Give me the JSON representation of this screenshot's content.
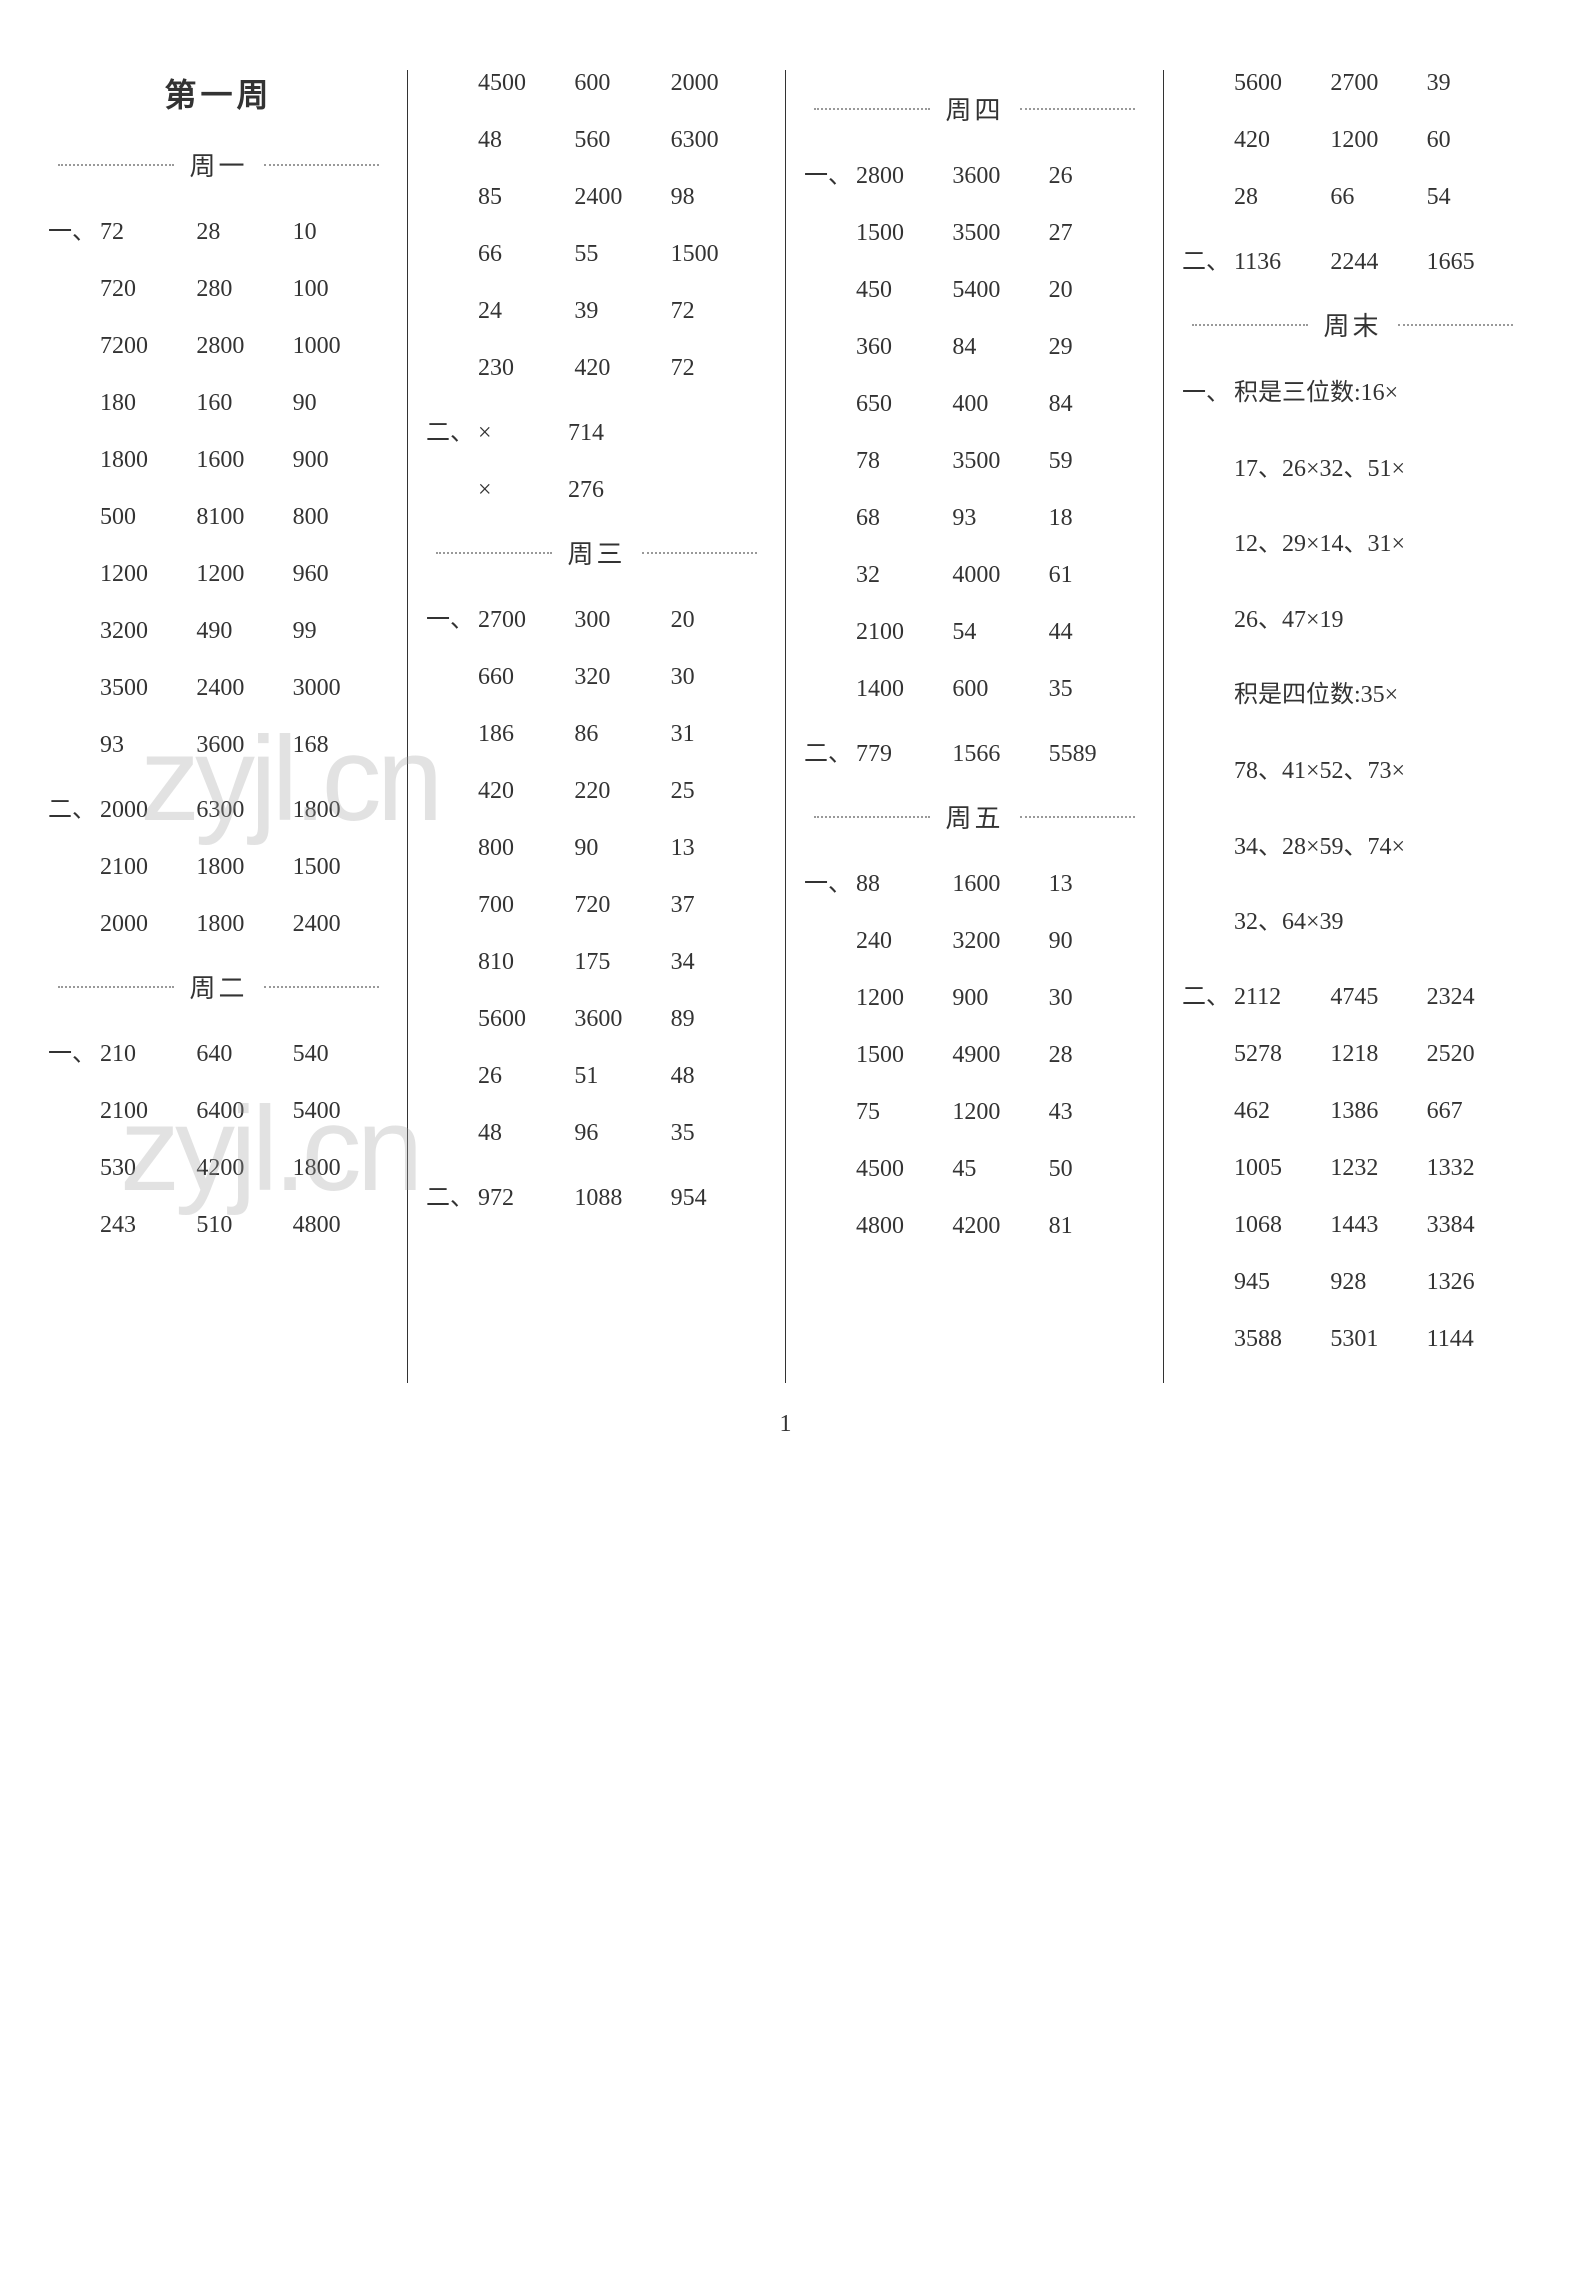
{
  "page_number": "1",
  "week_title": "第一周",
  "watermark_text": "zyjl.cn",
  "colors": {
    "text": "#333333",
    "background": "#ffffff",
    "divider": "#333333",
    "dots": "#999999",
    "watermark": "rgba(160,160,160,0.3)"
  },
  "typography": {
    "body_fontsize": 24,
    "title_fontsize": 32,
    "day_fontsize": 26,
    "font_family": "SimSun"
  },
  "columns": [
    {
      "blocks": [
        {
          "type": "week_title"
        },
        {
          "type": "day_header",
          "label": "周一"
        },
        {
          "type": "row",
          "marker": "一、",
          "values": [
            "72",
            "28",
            "10"
          ]
        },
        {
          "type": "row",
          "marker": "",
          "values": [
            "720",
            "280",
            "100"
          ]
        },
        {
          "type": "row",
          "marker": "",
          "values": [
            "7200",
            "2800",
            "1000"
          ]
        },
        {
          "type": "row",
          "marker": "",
          "values": [
            "180",
            "160",
            "90"
          ]
        },
        {
          "type": "row",
          "marker": "",
          "values": [
            "1800",
            "1600",
            "900"
          ]
        },
        {
          "type": "row",
          "marker": "",
          "values": [
            "500",
            "8100",
            "800"
          ]
        },
        {
          "type": "row",
          "marker": "",
          "values": [
            "1200",
            "1200",
            "960"
          ]
        },
        {
          "type": "row",
          "marker": "",
          "values": [
            "3200",
            "490",
            "99"
          ]
        },
        {
          "type": "row",
          "marker": "",
          "values": [
            "3500",
            "2400",
            "3000"
          ]
        },
        {
          "type": "row",
          "marker": "",
          "values": [
            "93",
            "3600",
            "168"
          ]
        },
        {
          "type": "row",
          "marker": "二、",
          "values": [
            "2000",
            "6300",
            "1800"
          ]
        },
        {
          "type": "row",
          "marker": "",
          "values": [
            "2100",
            "1800",
            "1500"
          ]
        },
        {
          "type": "row",
          "marker": "",
          "values": [
            "2000",
            "1800",
            "2400"
          ]
        },
        {
          "type": "day_header",
          "label": "周二"
        },
        {
          "type": "row",
          "marker": "一、",
          "values": [
            "210",
            "640",
            "540"
          ]
        },
        {
          "type": "row",
          "marker": "",
          "values": [
            "2100",
            "6400",
            "5400"
          ]
        },
        {
          "type": "row",
          "marker": "",
          "values": [
            "530",
            "4200",
            "1800"
          ]
        },
        {
          "type": "row",
          "marker": "",
          "values": [
            "243",
            "510",
            "4800"
          ]
        }
      ]
    },
    {
      "blocks": [
        {
          "type": "row",
          "marker": "",
          "values": [
            "4500",
            "600",
            "2000"
          ]
        },
        {
          "type": "row",
          "marker": "",
          "values": [
            "48",
            "560",
            "6300"
          ]
        },
        {
          "type": "row",
          "marker": "",
          "values": [
            "85",
            "2400",
            "98"
          ]
        },
        {
          "type": "row",
          "marker": "",
          "values": [
            "66",
            "55",
            "1500"
          ]
        },
        {
          "type": "row",
          "marker": "",
          "values": [
            "24",
            "39",
            "72"
          ]
        },
        {
          "type": "row",
          "marker": "",
          "values": [
            "230",
            "420",
            "72"
          ]
        },
        {
          "type": "symbol",
          "marker": "二、",
          "sym": "×",
          "val": "714"
        },
        {
          "type": "symbol",
          "marker": "",
          "sym": "×",
          "val": "276"
        },
        {
          "type": "day_header",
          "label": "周三"
        },
        {
          "type": "row",
          "marker": "一、",
          "values": [
            "2700",
            "300",
            "20"
          ]
        },
        {
          "type": "row",
          "marker": "",
          "values": [
            "660",
            "320",
            "30"
          ]
        },
        {
          "type": "row",
          "marker": "",
          "values": [
            "186",
            "86",
            "31"
          ]
        },
        {
          "type": "row",
          "marker": "",
          "values": [
            "420",
            "220",
            "25"
          ]
        },
        {
          "type": "row",
          "marker": "",
          "values": [
            "800",
            "90",
            "13"
          ]
        },
        {
          "type": "row",
          "marker": "",
          "values": [
            "700",
            "720",
            "37"
          ]
        },
        {
          "type": "row",
          "marker": "",
          "values": [
            "810",
            "175",
            "34"
          ]
        },
        {
          "type": "row",
          "marker": "",
          "values": [
            "5600",
            "3600",
            "89"
          ]
        },
        {
          "type": "row",
          "marker": "",
          "values": [
            "26",
            "51",
            "48"
          ]
        },
        {
          "type": "row",
          "marker": "",
          "values": [
            "48",
            "96",
            "35"
          ]
        },
        {
          "type": "row",
          "marker": "二、",
          "values": [
            "972",
            "1088",
            "954"
          ]
        }
      ]
    },
    {
      "blocks": [
        {
          "type": "day_header",
          "label": "周四"
        },
        {
          "type": "row",
          "marker": "一、",
          "values": [
            "2800",
            "3600",
            "26"
          ]
        },
        {
          "type": "row",
          "marker": "",
          "values": [
            "1500",
            "3500",
            "27"
          ]
        },
        {
          "type": "row",
          "marker": "",
          "values": [
            "450",
            "5400",
            "20"
          ]
        },
        {
          "type": "row",
          "marker": "",
          "values": [
            "360",
            "84",
            "29"
          ]
        },
        {
          "type": "row",
          "marker": "",
          "values": [
            "650",
            "400",
            "84"
          ]
        },
        {
          "type": "row",
          "marker": "",
          "values": [
            "78",
            "3500",
            "59"
          ]
        },
        {
          "type": "row",
          "marker": "",
          "values": [
            "68",
            "93",
            "18"
          ]
        },
        {
          "type": "row",
          "marker": "",
          "values": [
            "32",
            "4000",
            "61"
          ]
        },
        {
          "type": "row",
          "marker": "",
          "values": [
            "2100",
            "54",
            "44"
          ]
        },
        {
          "type": "row",
          "marker": "",
          "values": [
            "1400",
            "600",
            "35"
          ]
        },
        {
          "type": "row",
          "marker": "二、",
          "values": [
            "779",
            "1566",
            "5589"
          ]
        },
        {
          "type": "day_header",
          "label": "周五"
        },
        {
          "type": "row",
          "marker": "一、",
          "values": [
            "88",
            "1600",
            "13"
          ]
        },
        {
          "type": "row",
          "marker": "",
          "values": [
            "240",
            "3200",
            "90"
          ]
        },
        {
          "type": "row",
          "marker": "",
          "values": [
            "1200",
            "900",
            "30"
          ]
        },
        {
          "type": "row",
          "marker": "",
          "values": [
            "1500",
            "4900",
            "28"
          ]
        },
        {
          "type": "row",
          "marker": "",
          "values": [
            "75",
            "1200",
            "43"
          ]
        },
        {
          "type": "row",
          "marker": "",
          "values": [
            "4500",
            "45",
            "50"
          ]
        },
        {
          "type": "row",
          "marker": "",
          "values": [
            "4800",
            "4200",
            "81"
          ]
        }
      ]
    },
    {
      "blocks": [
        {
          "type": "row",
          "marker": "",
          "values": [
            "5600",
            "2700",
            "39"
          ]
        },
        {
          "type": "row",
          "marker": "",
          "values": [
            "420",
            "1200",
            "60"
          ]
        },
        {
          "type": "row",
          "marker": "",
          "values": [
            "28",
            "66",
            "54"
          ]
        },
        {
          "type": "row",
          "marker": "二、",
          "values": [
            "1136",
            "2244",
            "1665"
          ]
        },
        {
          "type": "day_header",
          "label": "周末"
        },
        {
          "type": "text",
          "marker": "一、",
          "text": "积是三位数:16×"
        },
        {
          "type": "text",
          "marker": "",
          "text": "17、26×32、51×"
        },
        {
          "type": "text",
          "marker": "",
          "text": "12、29×14、31×"
        },
        {
          "type": "text",
          "marker": "",
          "text": "26、47×19"
        },
        {
          "type": "text",
          "marker": "",
          "text": "积是四位数:35×"
        },
        {
          "type": "text",
          "marker": "",
          "text": "78、41×52、73×"
        },
        {
          "type": "text",
          "marker": "",
          "text": "34、28×59、74×"
        },
        {
          "type": "text",
          "marker": "",
          "text": "32、64×39"
        },
        {
          "type": "row",
          "marker": "二、",
          "values": [
            "2112",
            "4745",
            "2324"
          ]
        },
        {
          "type": "row",
          "marker": "",
          "values": [
            "5278",
            "1218",
            "2520"
          ]
        },
        {
          "type": "row",
          "marker": "",
          "values": [
            "462",
            "1386",
            "667"
          ]
        },
        {
          "type": "row",
          "marker": "",
          "values": [
            "1005",
            "1232",
            "1332"
          ]
        },
        {
          "type": "row",
          "marker": "",
          "values": [
            "1068",
            "1443",
            "3384"
          ]
        },
        {
          "type": "row",
          "marker": "",
          "values": [
            "945",
            "928",
            "1326"
          ]
        },
        {
          "type": "row",
          "marker": "",
          "values": [
            "3588",
            "5301",
            "1144"
          ]
        }
      ]
    }
  ]
}
